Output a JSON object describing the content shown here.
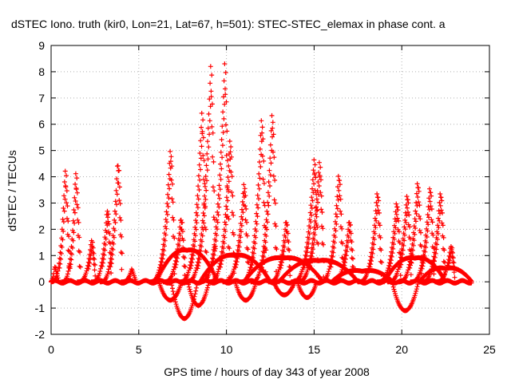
{
  "chart_data": {
    "type": "scatter",
    "title": "dSTEC Iono. truth (kir0, Lon=21, Lat=67, h=501): STEC-STEC_elemax in phase cont. a",
    "xlabel": "GPS time / hours of day 343 of year 2008",
    "ylabel": "dSTEC  / TECUs",
    "xlim": [
      0,
      25
    ],
    "ylim": [
      -2,
      9
    ],
    "xticks": [
      0,
      5,
      10,
      15,
      20,
      25
    ],
    "yticks": [
      -2,
      -1,
      0,
      1,
      2,
      3,
      4,
      5,
      6,
      7,
      8,
      9
    ],
    "grid": true,
    "marker": "+",
    "colors": {
      "series": "#ff0000",
      "grid": "#b0b0b0",
      "axes": "#000000"
    },
    "peaks": [
      {
        "t": 0.2,
        "peak": 0.6,
        "w": 0.3
      },
      {
        "t": 0.8,
        "peak": 4.3,
        "w": 0.8
      },
      {
        "t": 1.4,
        "peak": 4.2,
        "w": 0.8
      },
      {
        "t": 2.3,
        "peak": 1.6,
        "w": 0.8
      },
      {
        "t": 3.2,
        "peak": 2.8,
        "w": 0.9
      },
      {
        "t": 3.8,
        "peak": 4.7,
        "w": 1.0
      },
      {
        "t": 4.6,
        "peak": 0.5,
        "w": 0.6
      },
      {
        "t": 6.8,
        "peak": 5.1,
        "w": 1.2
      },
      {
        "t": 7.4,
        "peak": 2.5,
        "w": 1.0
      },
      {
        "t": 8.6,
        "peak": 6.5,
        "w": 1.3
      },
      {
        "t": 9.1,
        "peak": 8.2,
        "w": 1.4
      },
      {
        "t": 9.9,
        "peak": 8.3,
        "w": 1.4
      },
      {
        "t": 10.2,
        "peak": 5.5,
        "w": 1.2
      },
      {
        "t": 11.0,
        "peak": 3.8,
        "w": 1.2
      },
      {
        "t": 12.0,
        "peak": 6.3,
        "w": 1.2
      },
      {
        "t": 12.6,
        "peak": 6.5,
        "w": 1.2
      },
      {
        "t": 13.4,
        "peak": 2.4,
        "w": 1.0
      },
      {
        "t": 15.0,
        "peak": 4.7,
        "w": 1.3
      },
      {
        "t": 15.3,
        "peak": 4.6,
        "w": 1.3
      },
      {
        "t": 16.4,
        "peak": 4.2,
        "w": 1.1
      },
      {
        "t": 17.0,
        "peak": 2.4,
        "w": 1.0
      },
      {
        "t": 18.6,
        "peak": 3.5,
        "w": 1.1
      },
      {
        "t": 19.7,
        "peak": 3.1,
        "w": 1.1
      },
      {
        "t": 20.3,
        "peak": 3.4,
        "w": 1.1
      },
      {
        "t": 20.9,
        "peak": 3.9,
        "w": 1.1
      },
      {
        "t": 21.6,
        "peak": 3.7,
        "w": 1.1
      },
      {
        "t": 22.2,
        "peak": 3.5,
        "w": 1.1
      },
      {
        "t": 22.8,
        "peak": 1.4,
        "w": 0.9
      }
    ],
    "troughs": [
      {
        "t": 6.8,
        "min": -0.7,
        "w": 1.3
      },
      {
        "t": 7.6,
        "min": -1.4,
        "w": 1.5
      },
      {
        "t": 8.4,
        "min": -0.9,
        "w": 1.2
      },
      {
        "t": 11.1,
        "min": -0.7,
        "w": 1.2
      },
      {
        "t": 13.3,
        "min": -0.5,
        "w": 1.2
      },
      {
        "t": 14.6,
        "min": -0.6,
        "w": 1.1
      },
      {
        "t": 20.2,
        "min": -1.1,
        "w": 1.5
      }
    ],
    "arcs": [
      {
        "t0": 6.0,
        "t1": 9.5,
        "peak": 1.5
      },
      {
        "t0": 8.5,
        "t1": 12.5,
        "peak": 1.3
      },
      {
        "t0": 11.0,
        "t1": 15.5,
        "peak": 1.2
      },
      {
        "t0": 13.0,
        "t1": 17.5,
        "peak": 1.1
      },
      {
        "t0": 16.0,
        "t1": 19.5,
        "peak": 0.7
      },
      {
        "t0": 19.0,
        "t1": 22.5,
        "peak": 1.2
      },
      {
        "t0": 21.0,
        "t1": 24.0,
        "peak": 0.8
      }
    ],
    "t_range": [
      0,
      24
    ]
  }
}
